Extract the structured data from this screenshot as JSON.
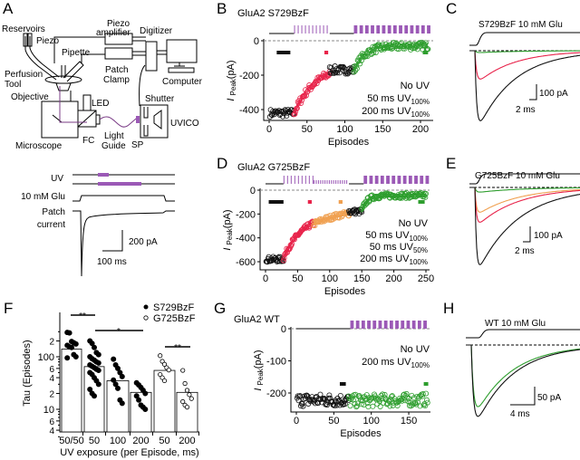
{
  "colors": {
    "black": "#111111",
    "red": "#e8234a",
    "green": "#2e9e2e",
    "orange": "#f0a050",
    "purple": "#9b59b6",
    "light_line": "#7a3b86"
  },
  "panels": {
    "A": {
      "letter": "A",
      "diagram_labels": {
        "reservoirs": "Reservoirs",
        "piezo": "Piezo",
        "pipette": "Pipette",
        "perfusion_1": "Perfusion",
        "perfusion_2": "Tool",
        "objective": "Objective",
        "led": "LED",
        "microscope": "Microscope",
        "fc": "FC",
        "light_1": "Light",
        "light_2": "Guide",
        "sp": "SP",
        "shutter": "Shutter",
        "uvico": "UVICO",
        "piezo_amp_1": "Piezo",
        "piezo_amp_2": "amplifier",
        "digitizer": "Digitizer",
        "patch_1": "Patch",
        "patch_2": "Clamp",
        "computer": "Computer"
      },
      "protocol": {
        "uv": "UV",
        "glu": "10 mM Glu",
        "current_1": "Patch",
        "current_2": "current",
        "scale_y": "200 pA",
        "scale_x": "100 ms"
      }
    },
    "B": {
      "letter": "B",
      "title": "GluA2 S729BzF"
    },
    "C": {
      "letter": "C",
      "title": "S729BzF 10 mM Glu",
      "scale_y": "100 pA",
      "scale_x": "2 ms"
    },
    "D": {
      "letter": "D",
      "title": "GluA2 G725BzF"
    },
    "E": {
      "letter": "E",
      "title": "G725BzF 10 mM Glu",
      "scale_y": "100 pA",
      "scale_x": "2 ms"
    },
    "F": {
      "letter": "F",
      "legend_filled": "S729BzF",
      "legend_open": "G725BzF",
      "sig": [
        "**",
        "*",
        "**"
      ]
    },
    "G": {
      "letter": "G",
      "title": "GluA2 WT"
    },
    "H": {
      "letter": "H",
      "title": "WT 10 mM Glu",
      "scale_y": "50 pA",
      "scale_x": "4 ms"
    }
  },
  "chart_data": [
    {
      "id": "B",
      "type": "scatter",
      "title": "GluA2 S729BzF",
      "xlabel": "Episodes",
      "ylabel": "I Peak (pA)",
      "xlim": [
        0,
        212
      ],
      "ylim": [
        -470,
        0
      ],
      "xticks": [
        "0",
        "50",
        "100",
        "150",
        "200"
      ],
      "yticks": [
        "0",
        "-200",
        "-400"
      ],
      "legend": [
        {
          "text": "No UV",
          "sub": "",
          "color": "black"
        },
        {
          "text": "50 ms UV",
          "sub": "100%",
          "color": "red"
        },
        {
          "text": "200 ms UV",
          "sub": "100%",
          "color": "green"
        }
      ],
      "segments": [
        {
          "condition": "No UV",
          "episodes": [
            1,
            33
          ],
          "from": -420,
          "to": -420,
          "tau": 1,
          "color": "black",
          "fit": false
        },
        {
          "condition": "50 ms UV100%",
          "episodes": [
            33,
            80
          ],
          "from": -420,
          "to": -140,
          "tau": 28,
          "color": "red",
          "fit": true
        },
        {
          "condition": "No UV",
          "episodes": [
            80,
            112
          ],
          "from": -170,
          "to": -170,
          "tau": 1,
          "color": "black",
          "fit": false
        },
        {
          "condition": "200 ms UV100%",
          "episodes": [
            112,
            210
          ],
          "from": -175,
          "to": -30,
          "tau": 14,
          "color": "green",
          "fit": true
        }
      ],
      "markers": [
        {
          "episodes": [
            10,
            28
          ],
          "color": "black"
        },
        {
          "episodes": [
            73,
            78
          ],
          "color": "red"
        },
        {
          "episodes": [
            203,
            210
          ],
          "color": "green"
        }
      ],
      "stim": [
        {
          "type": "none",
          "episodes": [
            0,
            33
          ]
        },
        {
          "type": "thin",
          "episodes": [
            33,
            80
          ]
        },
        {
          "type": "none",
          "episodes": [
            80,
            112
          ]
        },
        {
          "type": "thick",
          "episodes": [
            112,
            212
          ]
        }
      ]
    },
    {
      "id": "D",
      "type": "scatter",
      "title": "GluA2 G725BzF",
      "xlabel": "Episodes",
      "ylabel": "I Peak (pA)",
      "xlim": [
        0,
        252
      ],
      "ylim": [
        -640,
        0
      ],
      "xticks": [
        "0",
        "50",
        "100",
        "150",
        "200",
        "250"
      ],
      "yticks": [
        "0",
        "-200",
        "-400",
        "-600"
      ],
      "legend": [
        {
          "text": "No UV",
          "sub": "",
          "color": "black"
        },
        {
          "text": "50 ms UV",
          "sub": "100%",
          "color": "red"
        },
        {
          "text": "50 ms UV",
          "sub": "50%",
          "color": "orange"
        },
        {
          "text": "200 ms UV",
          "sub": "100%",
          "color": "green"
        }
      ],
      "segments": [
        {
          "condition": "No UV",
          "episodes": [
            1,
            28
          ],
          "from": -580,
          "to": -580,
          "tau": 1,
          "color": "black",
          "fit": false
        },
        {
          "condition": "50 ms UV100%",
          "episodes": [
            28,
            75
          ],
          "from": -570,
          "to": -200,
          "tau": 30,
          "color": "red",
          "fit": true
        },
        {
          "condition": "50 ms UV50%",
          "episodes": [
            75,
            130
          ],
          "from": -285,
          "to": -150,
          "tau": 50,
          "color": "orange",
          "fit": true
        },
        {
          "condition": "No UV",
          "episodes": [
            130,
            150
          ],
          "from": -180,
          "to": -180,
          "tau": 1,
          "color": "black",
          "fit": false
        },
        {
          "condition": "200 ms UV100%",
          "episodes": [
            150,
            250
          ],
          "from": -175,
          "to": -45,
          "tau": 8,
          "color": "green",
          "fit": true
        }
      ],
      "markers": [
        {
          "episodes": [
            5,
            28
          ],
          "color": "black"
        },
        {
          "episodes": [
            66,
            72
          ],
          "color": "red"
        },
        {
          "episodes": [
            114,
            120
          ],
          "color": "orange"
        },
        {
          "episodes": [
            238,
            248
          ],
          "color": "green"
        }
      ],
      "stim": [
        {
          "type": "none",
          "episodes": [
            0,
            28
          ]
        },
        {
          "type": "thin",
          "episodes": [
            28,
            75
          ]
        },
        {
          "type": "dotted",
          "episodes": [
            75,
            130
          ]
        },
        {
          "type": "none",
          "episodes": [
            130,
            153
          ]
        },
        {
          "type": "thick",
          "episodes": [
            153,
            252
          ]
        }
      ]
    },
    {
      "id": "G",
      "type": "scatter",
      "title": "GluA2 WT",
      "xlabel": "Episodes",
      "ylabel": "I Peak (pA)",
      "xlim": [
        0,
        178
      ],
      "ylim": [
        -250,
        0
      ],
      "xticks": [
        "0",
        "50",
        "100",
        "150"
      ],
      "yticks": [
        "0",
        "-100",
        "-200"
      ],
      "legend": [
        {
          "text": "No UV",
          "sub": "",
          "color": "black"
        },
        {
          "text": "200 ms UV",
          "sub": "100%",
          "color": "green"
        }
      ],
      "segments": [
        {
          "condition": "No UV",
          "episodes": [
            1,
            70
          ],
          "from": -222,
          "to": -222,
          "tau": 1,
          "color": "black",
          "fit": false
        },
        {
          "condition": "200 ms UV100%",
          "episodes": [
            70,
            175
          ],
          "from": -225,
          "to": -215,
          "tau": 200,
          "color": "green",
          "fit": false
        }
      ],
      "markers": [
        {
          "episodes": [
            58,
            66
          ],
          "color": "black"
        },
        {
          "episodes": [
            170,
            176
          ],
          "color": "green"
        }
      ],
      "stim": [
        {
          "type": "none",
          "episodes": [
            0,
            72
          ]
        },
        {
          "type": "thick",
          "episodes": [
            72,
            178
          ]
        }
      ]
    },
    {
      "id": "F",
      "type": "bar",
      "yscale": "log",
      "ylabel": "Tau (Episodes)",
      "xlabel": "UV exposure (per Episode, ms)",
      "ylim": [
        4,
        350
      ],
      "ytick_labels": [
        {
          "v": 200,
          "t": "2"
        },
        {
          "v": 100,
          "t": "100"
        },
        {
          "v": 60,
          "t": "6"
        },
        {
          "v": 40,
          "t": "4"
        },
        {
          "v": 20,
          "t": "2"
        },
        {
          "v": 10,
          "t": "10"
        },
        {
          "v": 6,
          "t": "6"
        },
        {
          "v": 4,
          "t": "4"
        }
      ],
      "categories": [
        "50/50",
        "50",
        "100",
        "200",
        "50",
        "200"
      ],
      "groups": [
        "S729BzF",
        "S729BzF",
        "S729BzF",
        "S729BzF",
        "G725BzF",
        "G725BzF"
      ],
      "values": [
        140,
        65,
        35,
        21,
        55,
        21
      ],
      "points": [
        [
          290,
          285,
          195,
          185,
          175,
          165,
          155,
          150,
          110,
          100,
          95
        ],
        [
          200,
          180,
          150,
          120,
          110,
          100,
          92,
          86,
          80,
          76,
          70,
          66,
          62,
          58,
          55,
          50,
          46,
          40,
          35,
          30,
          24,
          20,
          18
        ],
        [
          90,
          70,
          60,
          50,
          42,
          36,
          30,
          25,
          15,
          13
        ],
        [
          32,
          29,
          26,
          23,
          20,
          18,
          15,
          12,
          11,
          10
        ],
        [
          105,
          82,
          72,
          62,
          56,
          46,
          40,
          35
        ],
        [
          55,
          31,
          23,
          19,
          16,
          14,
          12,
          11
        ]
      ],
      "significance": [
        {
          "between": [
            0,
            1
          ],
          "label": "**"
        },
        {
          "between": [
            1,
            3
          ],
          "label": "*"
        },
        {
          "between": [
            4,
            5
          ],
          "label": "**"
        }
      ]
    },
    {
      "id": "C",
      "type": "line",
      "title": "S729BzF 10 mM Glu",
      "traces": [
        {
          "condition": "No UV",
          "color": "black",
          "peak_pA": -470
        },
        {
          "condition": "50 ms UV100%",
          "color": "red",
          "peak_pA": -190
        },
        {
          "condition": "200 ms UV100%",
          "color": "green",
          "peak_pA": -12
        }
      ]
    },
    {
      "id": "E",
      "type": "line",
      "title": "G725BzF 10 mM Glu",
      "traces": [
        {
          "condition": "No UV",
          "color": "black",
          "peak_pA": -500
        },
        {
          "condition": "50 ms UV100%",
          "color": "red",
          "peak_pA": -225
        },
        {
          "condition": "50 ms UV50%",
          "color": "orange",
          "peak_pA": -160
        },
        {
          "condition": "200 ms UV100%",
          "color": "green",
          "peak_pA": -30
        }
      ]
    },
    {
      "id": "H",
      "type": "line",
      "title": "WT 10 mM Glu",
      "traces": [
        {
          "condition": "No UV",
          "color": "black",
          "peak_pA": -220
        },
        {
          "condition": "200 ms UV100%",
          "color": "green",
          "peak_pA": -190
        }
      ]
    }
  ]
}
